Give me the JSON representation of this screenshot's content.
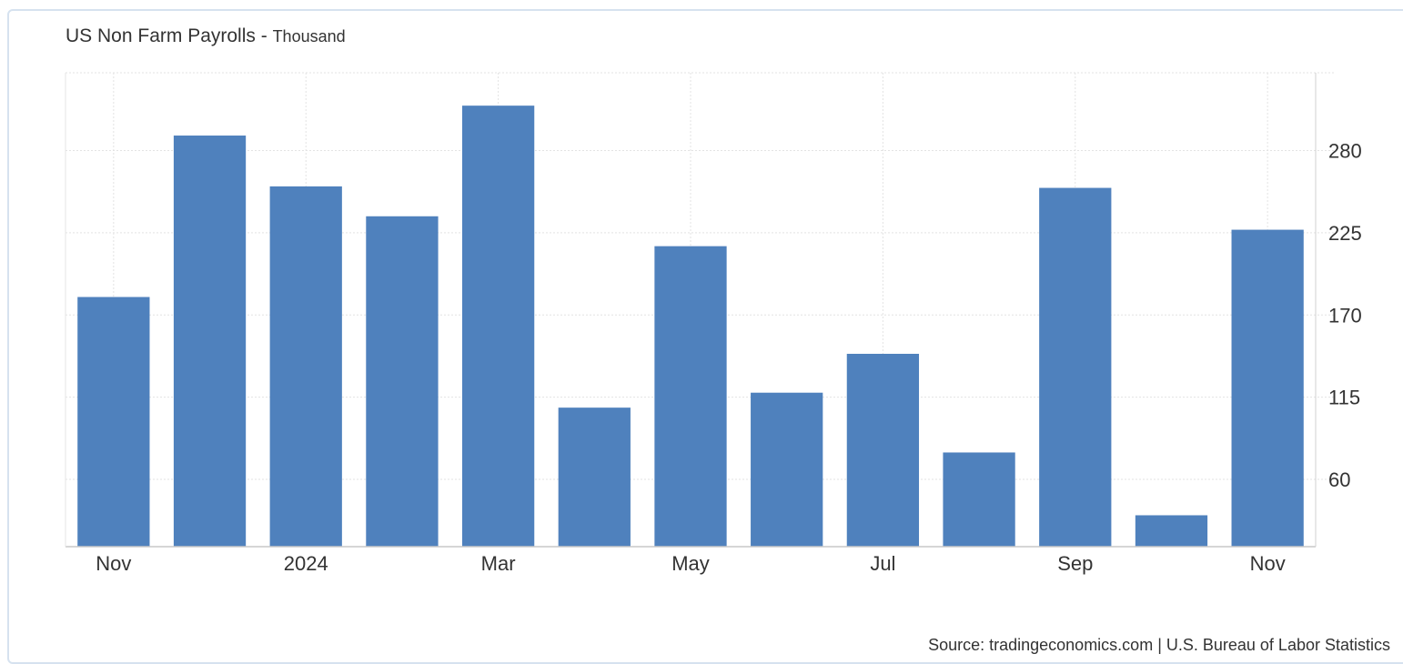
{
  "chart_data": {
    "type": "bar",
    "title": "US Non Farm Payrolls",
    "unit": "Thousand",
    "categories": [
      "Nov 2023",
      "Dec 2023",
      "Jan 2024",
      "Feb 2024",
      "Mar 2024",
      "Apr 2024",
      "May 2024",
      "Jun 2024",
      "Jul 2024",
      "Aug 2024",
      "Sep 2024",
      "Oct 2024",
      "Nov 2024"
    ],
    "values": [
      182,
      290,
      256,
      236,
      310,
      108,
      216,
      118,
      144,
      78,
      255,
      36,
      227
    ],
    "x_tick_labels": [
      {
        "category_index": 0,
        "label": "Nov"
      },
      {
        "category_index": 2,
        "label": "2024"
      },
      {
        "category_index": 4,
        "label": "Mar"
      },
      {
        "category_index": 6,
        "label": "May"
      },
      {
        "category_index": 8,
        "label": "Jul"
      },
      {
        "category_index": 10,
        "label": "Sep"
      },
      {
        "category_index": 12,
        "label": "Nov"
      }
    ],
    "y_ticks": [
      60,
      115,
      170,
      225,
      280
    ],
    "ylim": [
      15,
      332
    ],
    "y_axis_side": "right",
    "grid": true,
    "bar_color": "#4f81bd",
    "source": "Source: tradingeconomics.com | U.S. Bureau of Labor Statistics"
  }
}
